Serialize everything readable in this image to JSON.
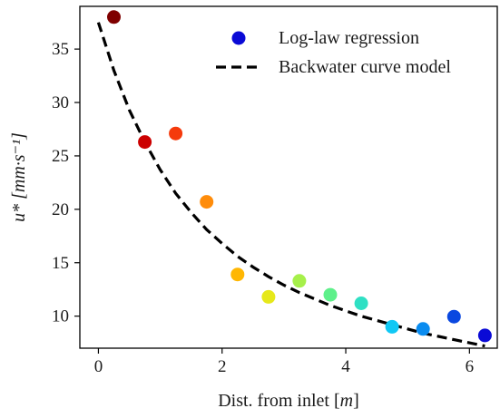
{
  "chart_data": {
    "type": "scatter",
    "xlabel": "Dist. from inlet [m]",
    "ylabel": "u* [mm·s⁻¹]",
    "xlim": [
      -0.3,
      6.45
    ],
    "ylim": [
      7,
      39
    ],
    "xticks": [
      0,
      2,
      4,
      6
    ],
    "yticks": [
      10,
      15,
      20,
      25,
      30,
      35
    ],
    "grid": false,
    "legend_placement": "top-right",
    "series": [
      {
        "name": "Log-law regression",
        "kind": "scatter",
        "legend_color": "#0a0ad6",
        "points": [
          {
            "x": 0.25,
            "y": 38.0,
            "color": "#7f0000"
          },
          {
            "x": 0.75,
            "y": 26.3,
            "color": "#cc0000"
          },
          {
            "x": 1.25,
            "y": 27.1,
            "color": "#f53a0c"
          },
          {
            "x": 1.75,
            "y": 20.7,
            "color": "#ff8c0a"
          },
          {
            "x": 2.25,
            "y": 13.9,
            "color": "#ffb703"
          },
          {
            "x": 2.75,
            "y": 11.8,
            "color": "#e6e81a"
          },
          {
            "x": 3.25,
            "y": 13.3,
            "color": "#a6f04a"
          },
          {
            "x": 3.75,
            "y": 12.0,
            "color": "#5ef08a"
          },
          {
            "x": 4.25,
            "y": 11.2,
            "color": "#2fe0c4"
          },
          {
            "x": 4.75,
            "y": 9.0,
            "color": "#10c8f5"
          },
          {
            "x": 5.25,
            "y": 8.8,
            "color": "#0a8cf0"
          },
          {
            "x": 5.75,
            "y": 9.95,
            "color": "#0a48e0"
          },
          {
            "x": 6.25,
            "y": 8.2,
            "color": "#0a0ad6"
          }
        ]
      },
      {
        "name": "Backwater curve model",
        "kind": "line",
        "style": "dashed",
        "color": "#000000",
        "x": [
          0.0,
          0.25,
          0.5,
          0.75,
          1.0,
          1.25,
          1.5,
          1.75,
          2.0,
          2.25,
          2.5,
          2.75,
          3.0,
          3.25,
          3.5,
          3.75,
          4.0,
          4.25,
          4.5,
          4.75,
          5.0,
          5.25,
          5.5,
          5.75,
          6.0,
          6.25
        ],
        "y": [
          37.5,
          33.0,
          29.3,
          26.3,
          23.7,
          21.5,
          19.7,
          18.1,
          16.8,
          15.6,
          14.6,
          13.7,
          12.9,
          12.2,
          11.6,
          11.0,
          10.5,
          10.0,
          9.6,
          9.2,
          8.8,
          8.4,
          8.1,
          7.8,
          7.5,
          7.2
        ]
      }
    ]
  }
}
